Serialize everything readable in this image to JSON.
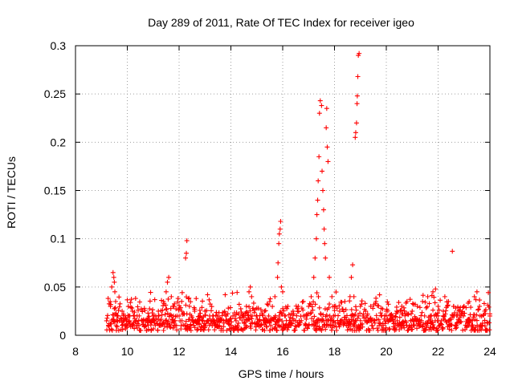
{
  "chart_data": {
    "type": "scatter",
    "title": "Day 289 of 2011, Rate Of TEC Index for receiver igeo",
    "xlabel": "GPS time / hours",
    "ylabel": "ROTI / TECUs",
    "xlim": [
      8,
      24
    ],
    "ylim": [
      0,
      0.3
    ],
    "x_ticks": [
      8,
      10,
      12,
      14,
      16,
      18,
      20,
      22,
      24
    ],
    "x_tick_labels": [
      "8",
      "10",
      "12",
      "14",
      "16",
      "18",
      "20",
      "22",
      "24"
    ],
    "y_ticks": [
      0,
      0.05,
      0.1,
      0.15,
      0.2,
      0.25,
      0.3
    ],
    "y_tick_labels": [
      "0",
      "0.05",
      "0.1",
      "0.15",
      "0.2",
      "0.25",
      "0.3"
    ],
    "grid": true,
    "marker": "plus",
    "color": "#ff0000",
    "series": [
      {
        "name": "igeo",
        "points": [
          [
            9.3,
            0.012
          ],
          [
            9.35,
            0.03
          ],
          [
            9.4,
            0.05
          ],
          [
            9.45,
            0.065
          ],
          [
            9.48,
            0.06
          ],
          [
            9.5,
            0.055
          ],
          [
            9.52,
            0.045
          ],
          [
            9.55,
            0.035
          ],
          [
            9.6,
            0.02
          ],
          [
            9.7,
            0.015
          ],
          [
            9.8,
            0.025
          ],
          [
            9.9,
            0.018
          ],
          [
            10.0,
            0.01
          ],
          [
            10.1,
            0.02
          ],
          [
            10.2,
            0.025
          ],
          [
            10.4,
            0.012
          ],
          [
            10.6,
            0.015
          ],
          [
            10.8,
            0.018
          ],
          [
            11.0,
            0.02
          ],
          [
            11.2,
            0.025
          ],
          [
            11.4,
            0.035
          ],
          [
            11.5,
            0.045
          ],
          [
            11.55,
            0.055
          ],
          [
            11.6,
            0.06
          ],
          [
            11.7,
            0.04
          ],
          [
            11.8,
            0.03
          ],
          [
            12.0,
            0.02
          ],
          [
            12.1,
            0.025
          ],
          [
            12.25,
            0.08
          ],
          [
            12.28,
            0.085
          ],
          [
            12.3,
            0.098
          ],
          [
            12.4,
            0.03
          ],
          [
            12.6,
            0.025
          ],
          [
            12.8,
            0.02
          ],
          [
            13.0,
            0.025
          ],
          [
            13.1,
            0.042
          ],
          [
            13.3,
            0.02
          ],
          [
            13.6,
            0.015
          ],
          [
            13.9,
            0.012
          ],
          [
            14.2,
            0.015
          ],
          [
            14.5,
            0.02
          ],
          [
            14.6,
            0.03
          ],
          [
            14.7,
            0.045
          ],
          [
            14.75,
            0.05
          ],
          [
            14.8,
            0.04
          ],
          [
            15.0,
            0.02
          ],
          [
            15.3,
            0.025
          ],
          [
            15.5,
            0.035
          ],
          [
            15.7,
            0.04
          ],
          [
            15.8,
            0.06
          ],
          [
            15.82,
            0.075
          ],
          [
            15.85,
            0.095
          ],
          [
            15.87,
            0.105
          ],
          [
            15.9,
            0.11
          ],
          [
            15.92,
            0.118
          ],
          [
            15.95,
            0.05
          ],
          [
            16.0,
            0.045
          ],
          [
            16.2,
            0.03
          ],
          [
            16.4,
            0.025
          ],
          [
            16.6,
            0.03
          ],
          [
            16.8,
            0.035
          ],
          [
            17.0,
            0.03
          ],
          [
            17.1,
            0.04
          ],
          [
            17.2,
            0.06
          ],
          [
            17.25,
            0.08
          ],
          [
            17.3,
            0.1
          ],
          [
            17.32,
            0.125
          ],
          [
            17.35,
            0.14
          ],
          [
            17.37,
            0.16
          ],
          [
            17.4,
            0.185
          ],
          [
            17.42,
            0.23
          ],
          [
            17.45,
            0.243
          ],
          [
            17.5,
            0.238
          ],
          [
            17.52,
            0.17
          ],
          [
            17.55,
            0.15
          ],
          [
            17.58,
            0.13
          ],
          [
            17.6,
            0.11
          ],
          [
            17.62,
            0.095
          ],
          [
            17.65,
            0.08
          ],
          [
            17.68,
            0.215
          ],
          [
            17.7,
            0.235
          ],
          [
            17.72,
            0.195
          ],
          [
            17.75,
            0.18
          ],
          [
            17.8,
            0.06
          ],
          [
            17.9,
            0.04
          ],
          [
            18.0,
            0.03
          ],
          [
            18.2,
            0.025
          ],
          [
            18.4,
            0.035
          ],
          [
            18.6,
            0.04
          ],
          [
            18.65,
            0.06
          ],
          [
            18.7,
            0.073
          ],
          [
            18.75,
            0.04
          ],
          [
            18.8,
            0.205
          ],
          [
            18.82,
            0.21
          ],
          [
            18.85,
            0.22
          ],
          [
            18.87,
            0.24
          ],
          [
            18.88,
            0.248
          ],
          [
            18.9,
            0.268
          ],
          [
            18.92,
            0.29
          ],
          [
            18.95,
            0.292
          ],
          [
            19.0,
            0.03
          ],
          [
            19.2,
            0.025
          ],
          [
            19.4,
            0.03
          ],
          [
            19.6,
            0.035
          ],
          [
            19.8,
            0.02
          ],
          [
            20.0,
            0.025
          ],
          [
            20.2,
            0.02
          ],
          [
            20.4,
            0.025
          ],
          [
            20.6,
            0.03
          ],
          [
            20.8,
            0.035
          ],
          [
            21.0,
            0.025
          ],
          [
            21.2,
            0.03
          ],
          [
            21.4,
            0.035
          ],
          [
            21.6,
            0.04
          ],
          [
            21.8,
            0.045
          ],
          [
            21.9,
            0.048
          ],
          [
            22.0,
            0.03
          ],
          [
            22.2,
            0.025
          ],
          [
            22.4,
            0.035
          ],
          [
            22.55,
            0.087
          ],
          [
            22.6,
            0.03
          ],
          [
            22.8,
            0.025
          ],
          [
            23.0,
            0.03
          ],
          [
            23.2,
            0.035
          ],
          [
            23.4,
            0.04
          ],
          [
            23.5,
            0.045
          ],
          [
            23.6,
            0.03
          ],
          [
            23.8,
            0.025
          ],
          [
            24.0,
            0.02
          ]
        ]
      }
    ],
    "dense_band": {
      "x_range": [
        9.2,
        24
      ],
      "floor_values": [
        0.005,
        0.01,
        0.015,
        0.02
      ]
    }
  }
}
